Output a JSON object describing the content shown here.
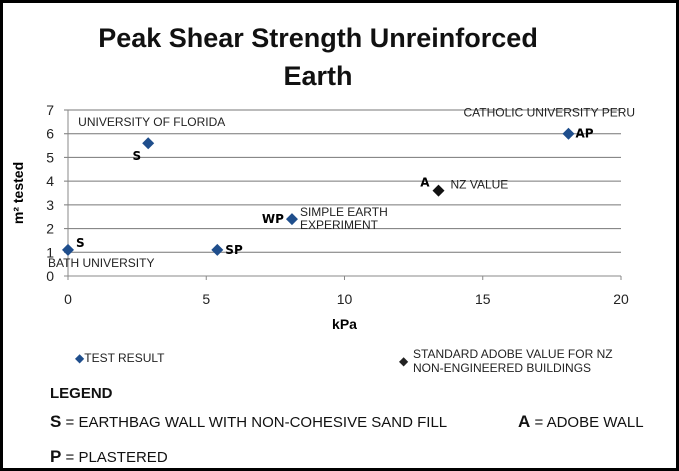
{
  "chart_data": {
    "type": "scatter",
    "title": "Peak Shear Strength Unreinforced Earth",
    "xlabel": "kPa",
    "ylabel": "m² tested",
    "xlim": [
      0,
      20
    ],
    "ylim": [
      0,
      7
    ],
    "xticks": [
      "0",
      "5",
      "10",
      "15",
      "20"
    ],
    "yticks": [
      "0",
      "1",
      "2",
      "3",
      "4",
      "5",
      "6",
      "7"
    ],
    "grid": "horizontal",
    "series": [
      {
        "name": "TEST RESULT",
        "color": "#1f4e8c",
        "marker": "diamond",
        "points": [
          {
            "x": 0,
            "y": 1.1,
            "code": "S",
            "label": "BATH UNIVERSITY"
          },
          {
            "x": 2.9,
            "y": 5.6,
            "code": "S",
            "label": "UNIVERSITY OF FLORIDA"
          },
          {
            "x": 5.4,
            "y": 1.1,
            "code": "SP",
            "label": ""
          },
          {
            "x": 8.1,
            "y": 2.4,
            "code": "WP",
            "label": "SIMPLE EARTH EXPERIMENT"
          },
          {
            "x": 18.1,
            "y": 6.0,
            "code": "AP",
            "label": "CATHOLIC UNIVERSITY PERU"
          }
        ]
      },
      {
        "name": "STANDARD ADOBE VALUE FOR NZ NON-ENGINEERED BUILDINGS",
        "color": "#111111",
        "marker": "diamond",
        "points": [
          {
            "x": 13.4,
            "y": 3.6,
            "code": "A",
            "label": "NZ VALUE"
          }
        ]
      }
    ]
  },
  "legend": {
    "heading": "LEGEND",
    "items": [
      {
        "key": "S",
        "text": "EARTHBAG WALL WITH NON-COHESIVE SAND FILL"
      },
      {
        "key": "A",
        "text": "ADOBE WALL"
      },
      {
        "key": "P",
        "text": "PLASTERED"
      }
    ]
  }
}
